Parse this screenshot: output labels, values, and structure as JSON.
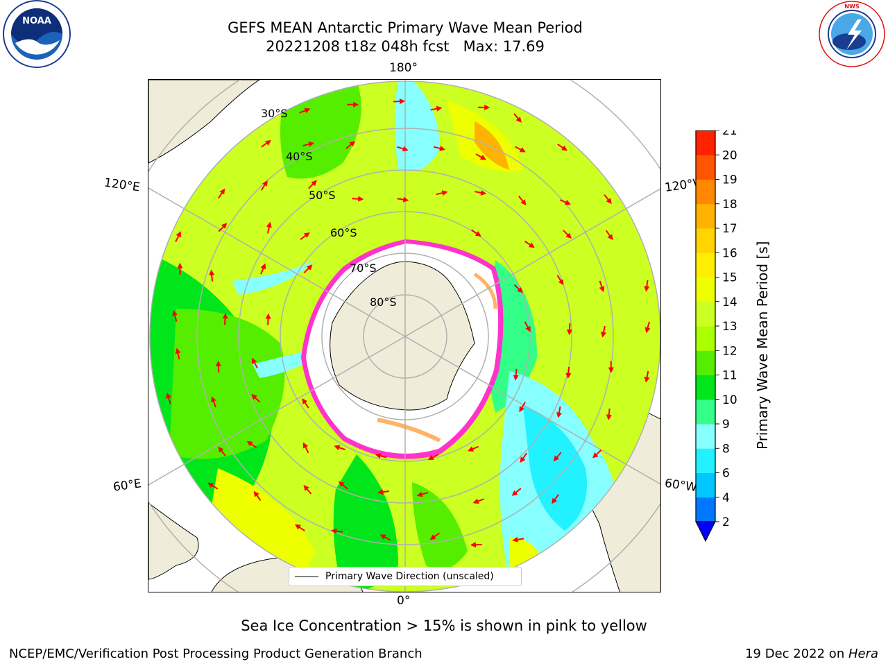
{
  "header": {
    "title_line1": "GEFS MEAN Antarctic Primary Wave Mean Period",
    "title_line2": "20221208 t18z 048h fcst   Max: 17.69"
  },
  "logos": {
    "left": {
      "name": "NOAA",
      "text": "NOAA",
      "ring_text": "NATIONAL OCEANIC AND ATMOSPHERIC ADMINISTRATION · U.S. DEPARTMENT OF COMMERCE"
    },
    "right": {
      "name": "National Weather Service",
      "ring_text": "NATIONAL WEATHER SERVICE"
    }
  },
  "map": {
    "projection": "south-polar-stereographic",
    "lon_labels": {
      "top": "180°",
      "bottom": "0°",
      "left_upper": "120°E",
      "left_lower": "60°E",
      "right_upper": "120°W",
      "right_lower": "60°W"
    },
    "lat_labels": [
      "30°S",
      "40°S",
      "50°S",
      "60°S",
      "70°S",
      "80°S"
    ],
    "legend": "Primary Wave Direction (unscaled)",
    "colors": {
      "land": "#efecd9",
      "coast": "#000000",
      "grid": "#b0b0b0",
      "arrow": "#ff0000",
      "sea_ice": "#ffffff",
      "ice_edge": "#ff33cc"
    }
  },
  "colorbar": {
    "label": "Primary Wave Mean Period [s]",
    "ticks": [
      "2",
      "4",
      "6",
      "8",
      "9",
      "10",
      "11",
      "12",
      "13",
      "14",
      "15",
      "16",
      "17",
      "18",
      "19",
      "20",
      "21"
    ],
    "colors": [
      "#0077ff",
      "#00c8ff",
      "#22f2ff",
      "#88ffff",
      "#33ff88",
      "#00e61a",
      "#55ee00",
      "#aaff00",
      "#ccff22",
      "#eeff00",
      "#ffee00",
      "#ffd400",
      "#ffb300",
      "#ff8800",
      "#ff5500",
      "#ff2200"
    ],
    "extend_color": "#0000ff"
  },
  "caption": "Sea Ice Concentration > 15% is shown in pink to yellow",
  "footer": {
    "left": "NCEP/EMC/Verification Post Processing Product Generation Branch",
    "right_date": "19 Dec 2022 on ",
    "right_host": "Hera"
  }
}
